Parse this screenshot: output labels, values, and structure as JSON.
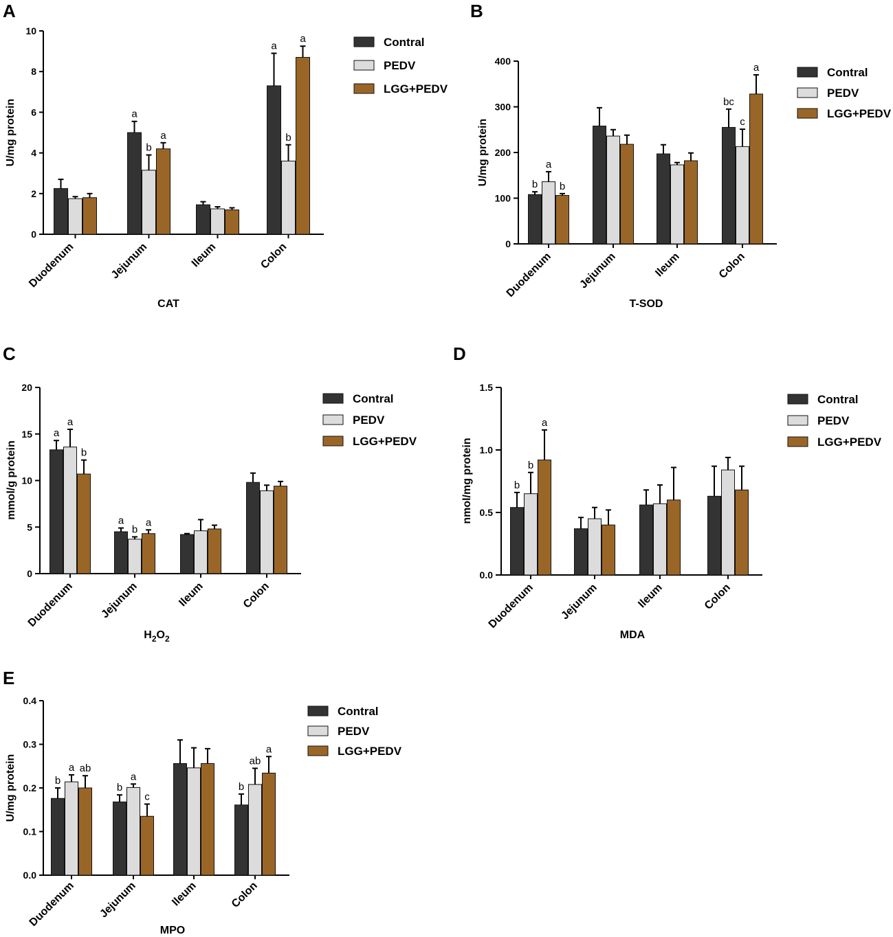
{
  "colors": {
    "Contral": "#333333",
    "PEDV": "#dcdcdc",
    "LGG+PEDV": "#9a6628"
  },
  "chart_data": [
    {
      "panel": "A",
      "type": "bar",
      "title": "CAT",
      "ylabel": "U/mg protein",
      "categories": [
        "Duodenum",
        "Jejunum",
        "Ileum",
        "Colon"
      ],
      "ylim": [
        0,
        10
      ],
      "yticks": [
        "0",
        "2",
        "4",
        "6",
        "8",
        "10"
      ],
      "series": [
        {
          "name": "Contral",
          "values": [
            2.25,
            5.0,
            1.45,
            7.3
          ],
          "errors": [
            0.45,
            0.55,
            0.15,
            1.6
          ],
          "labels": [
            "",
            "a",
            "",
            "a"
          ]
        },
        {
          "name": "PEDV",
          "values": [
            1.75,
            3.15,
            1.25,
            3.6
          ],
          "errors": [
            0.1,
            0.75,
            0.1,
            0.8
          ],
          "labels": [
            "",
            "b",
            "",
            "b"
          ]
        },
        {
          "name": "LGG+PEDV",
          "values": [
            1.8,
            4.2,
            1.2,
            8.7
          ],
          "errors": [
            0.2,
            0.3,
            0.1,
            0.55
          ],
          "labels": [
            "",
            "a",
            "",
            "a"
          ]
        }
      ]
    },
    {
      "panel": "B",
      "type": "bar",
      "title": "T-SOD",
      "ylabel": "U/mg protein",
      "categories": [
        "Duodenum",
        "Jejunum",
        "Ileum",
        "Colon"
      ],
      "ylim": [
        0,
        400
      ],
      "yticks": [
        "0",
        "100",
        "200",
        "300",
        "400"
      ],
      "series": [
        {
          "name": "Contral",
          "values": [
            108,
            258,
            197,
            255
          ],
          "errors": [
            6,
            40,
            20,
            40
          ],
          "labels": [
            "b",
            "",
            "",
            "bc"
          ]
        },
        {
          "name": "PEDV",
          "values": [
            136,
            236,
            173,
            213
          ],
          "errors": [
            22,
            14,
            5,
            38
          ],
          "labels": [
            "a",
            "",
            "",
            "c"
          ]
        },
        {
          "name": "LGG+PEDV",
          "values": [
            106,
            218,
            182,
            328
          ],
          "errors": [
            4,
            20,
            17,
            42
          ],
          "labels": [
            "b",
            "",
            "",
            "a"
          ]
        }
      ]
    },
    {
      "panel": "C",
      "type": "bar",
      "title": "H2O2",
      "ylabel": "mmol/g protein",
      "categories": [
        "Duodenum",
        "Jejunum",
        "Ileum",
        "Colon"
      ],
      "ylim": [
        0,
        20
      ],
      "yticks": [
        "0",
        "5",
        "10",
        "15",
        "20"
      ],
      "series": [
        {
          "name": "Contral",
          "values": [
            13.3,
            4.5,
            4.2,
            9.8
          ],
          "errors": [
            1.0,
            0.4,
            0.1,
            1.0
          ],
          "labels": [
            "a",
            "a",
            "",
            ""
          ]
        },
        {
          "name": "PEDV",
          "values": [
            13.6,
            3.7,
            4.6,
            8.9
          ],
          "errors": [
            1.9,
            0.25,
            1.2,
            0.6
          ],
          "labels": [
            "a",
            "b",
            "",
            ""
          ]
        },
        {
          "name": "LGG+PEDV",
          "values": [
            10.7,
            4.3,
            4.8,
            9.4
          ],
          "errors": [
            1.5,
            0.4,
            0.4,
            0.5
          ],
          "labels": [
            "b",
            "a",
            "",
            ""
          ]
        }
      ]
    },
    {
      "panel": "D",
      "type": "bar",
      "title": "MDA",
      "ylabel": "nmol/mg protein",
      "categories": [
        "Duodenum",
        "Jejunum",
        "Ileum",
        "Colon"
      ],
      "ylim": [
        0,
        1.5
      ],
      "yticks": [
        "0.0",
        "0.5",
        "1.0",
        "1.5"
      ],
      "series": [
        {
          "name": "Contral",
          "values": [
            0.54,
            0.37,
            0.56,
            0.63
          ],
          "errors": [
            0.12,
            0.09,
            0.12,
            0.24
          ],
          "labels": [
            "b",
            "",
            "",
            ""
          ]
        },
        {
          "name": "PEDV",
          "values": [
            0.65,
            0.45,
            0.57,
            0.84
          ],
          "errors": [
            0.17,
            0.09,
            0.15,
            0.1
          ],
          "labels": [
            "b",
            "",
            "",
            ""
          ]
        },
        {
          "name": "LGG+PEDV",
          "values": [
            0.92,
            0.4,
            0.6,
            0.68
          ],
          "errors": [
            0.24,
            0.12,
            0.26,
            0.19
          ],
          "labels": [
            "a",
            "",
            "",
            ""
          ]
        }
      ]
    },
    {
      "panel": "E",
      "type": "bar",
      "title": "MPO",
      "ylabel": "U/mg protein",
      "categories": [
        "Duodenum",
        "Jejunum",
        "Ileum",
        "Colon"
      ],
      "ylim": [
        0,
        0.4
      ],
      "yticks": [
        "0.0",
        "0.1",
        "0.2",
        "0.3",
        "0.4"
      ],
      "series": [
        {
          "name": "Contral",
          "values": [
            0.176,
            0.168,
            0.256,
            0.161
          ],
          "errors": [
            0.024,
            0.016,
            0.054,
            0.025
          ],
          "labels": [
            "b",
            "b",
            "",
            "b"
          ]
        },
        {
          "name": "PEDV",
          "values": [
            0.214,
            0.201,
            0.246,
            0.208
          ],
          "errors": [
            0.016,
            0.008,
            0.046,
            0.037
          ],
          "labels": [
            "a",
            "a",
            "",
            "ab"
          ]
        },
        {
          "name": "LGG+PEDV",
          "values": [
            0.2,
            0.135,
            0.256,
            0.234
          ],
          "errors": [
            0.028,
            0.028,
            0.034,
            0.038
          ],
          "labels": [
            "ab",
            "c",
            "",
            "a"
          ]
        }
      ]
    }
  ]
}
